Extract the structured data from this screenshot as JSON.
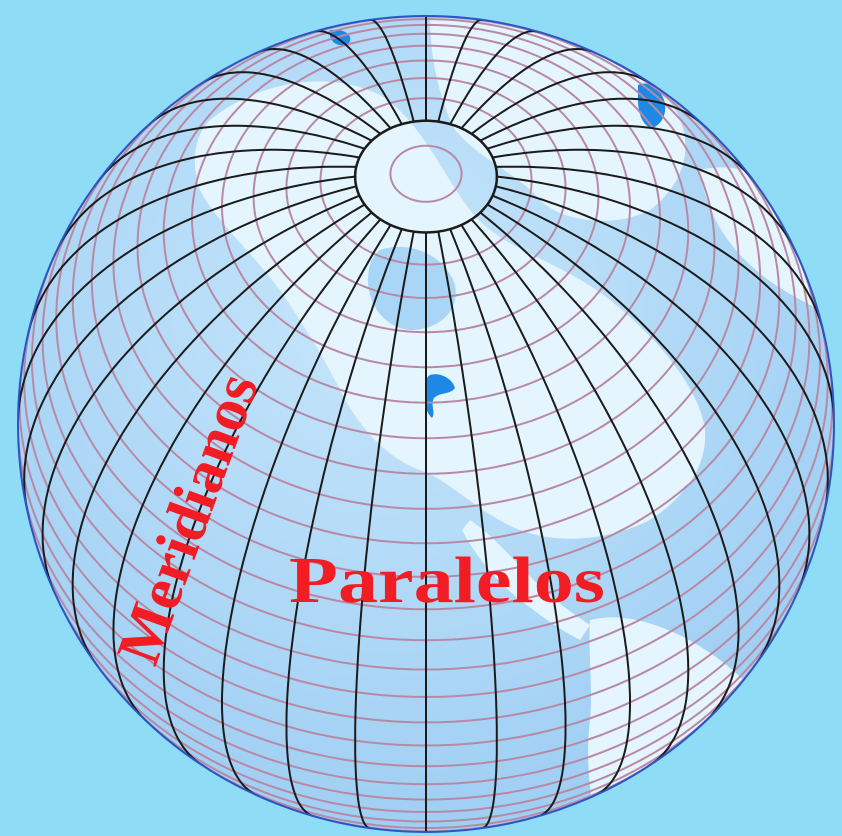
{
  "labels": {
    "meridians": "Meridianos",
    "parallels": "Paralelos"
  },
  "colors": {
    "background": "#8fdcf7",
    "ocean": "#a9d6f7",
    "land": "#e4f5fd",
    "lakes": "#1e88e6",
    "meridian_lines": "#1b1b1b",
    "parallel_lines": "#b889a5",
    "label": "#f21c24",
    "outline": "#2b55c4"
  }
}
